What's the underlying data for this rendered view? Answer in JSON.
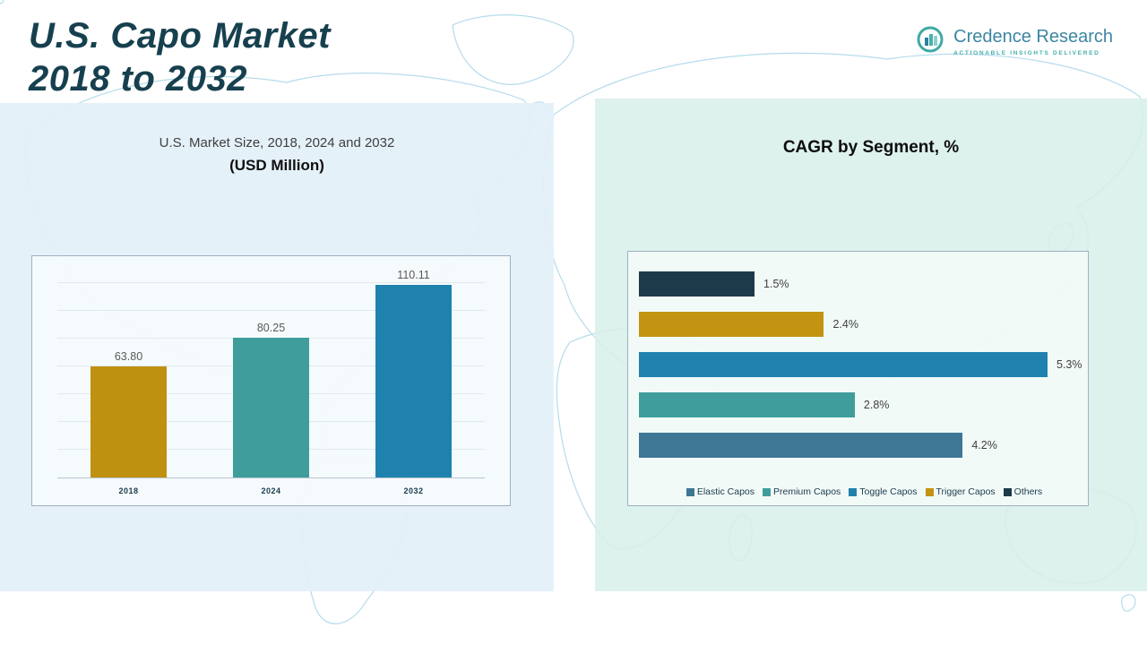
{
  "page": {
    "title_line1": "U.S. Capo Market",
    "title_line2": "2018 to 2032"
  },
  "logo": {
    "name": "Credence Research",
    "tagline": "ACTIONABLE INSIGHTS DELIVERED"
  },
  "left_panel": {
    "heading_line1": "U.S. Market Size, 2018, 2024 and 2032",
    "heading_line2": "(USD Million)"
  },
  "right_panel": {
    "heading": "CAGR by Segment, %"
  },
  "chart_data": [
    {
      "type": "bar",
      "title": "U.S. Market Size, 2018, 2024 and 2032 (USD Million)",
      "categories": [
        "2018",
        "2024",
        "2032"
      ],
      "values": [
        63.8,
        80.25,
        110.11
      ],
      "value_labels": [
        "63.80",
        "80.25",
        "110.11"
      ],
      "bar_colors": [
        "#bf9110",
        "#3f9e9c",
        "#1f82ae"
      ],
      "xlabel": "",
      "ylabel": "USD Million",
      "ylim": [
        0,
        120
      ],
      "grid": true,
      "legend_position": "none"
    },
    {
      "type": "bar-horizontal",
      "title": "CAGR by Segment, %",
      "categories": [
        "Others",
        "Trigger Capos",
        "Toggle Capos",
        "Premium Capos",
        "Elastic Capos"
      ],
      "values": [
        1.5,
        2.4,
        5.3,
        2.8,
        4.2
      ],
      "value_labels": [
        "1.5%",
        "2.4%",
        "5.3%",
        "2.8%",
        "4.2%"
      ],
      "bar_colors": [
        "#1d3a4a",
        "#c29412",
        "#1f82ae",
        "#3f9e9c",
        "#3d7795"
      ],
      "xlim": [
        0,
        5.5
      ],
      "grid": false,
      "legend_position": "bottom",
      "legend": [
        {
          "label": "Elastic Capos",
          "color": "#3d7795"
        },
        {
          "label": "Premium Capos",
          "color": "#3f9e9c"
        },
        {
          "label": "Toggle Capos",
          "color": "#1f82ae"
        },
        {
          "label": "Trigger Capos",
          "color": "#c29412"
        },
        {
          "label": "Others",
          "color": "#1d3a4a"
        }
      ]
    }
  ]
}
